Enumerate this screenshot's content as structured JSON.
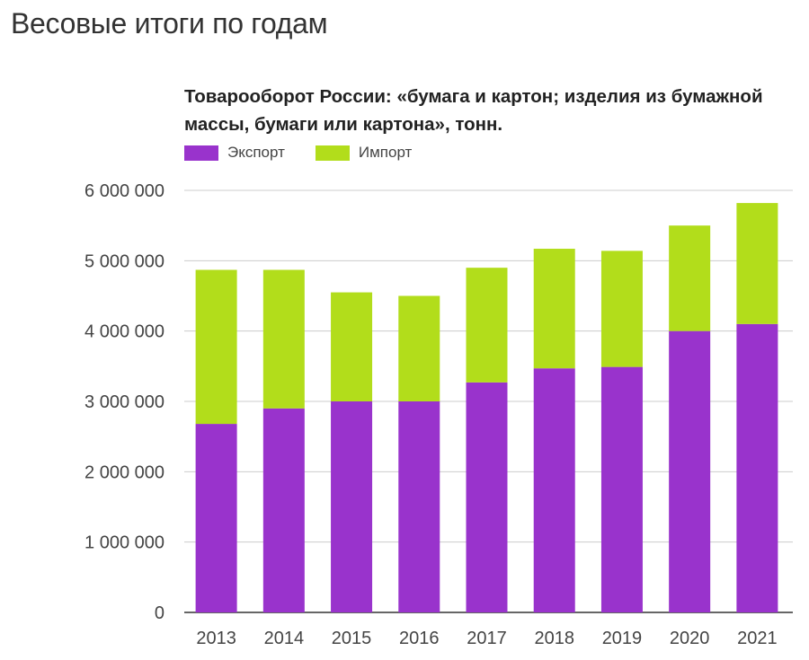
{
  "page": {
    "title": "Весовые итоги по годам"
  },
  "chart_data": {
    "type": "bar",
    "stacked": true,
    "title": "Товарооборот России: «бумага и картон; изделия из бумажной массы, бумаги или картона», тонн.",
    "categories": [
      "2013",
      "2014",
      "2015",
      "2016",
      "2017",
      "2018",
      "2019",
      "2020",
      "2021"
    ],
    "series": [
      {
        "name": "Экспорт",
        "color": "#9933cc",
        "values": [
          2680000,
          2900000,
          3000000,
          3000000,
          3270000,
          3470000,
          3490000,
          4000000,
          4100000
        ]
      },
      {
        "name": "Импорт",
        "color": "#b2dd1b",
        "values": [
          2190000,
          1970000,
          1550000,
          1500000,
          1630000,
          1700000,
          1650000,
          1500000,
          1720000
        ]
      }
    ],
    "ylim": [
      0,
      6000000
    ],
    "yticks": [
      "0",
      "1 000 000",
      "2 000 000",
      "3 000 000",
      "4 000 000",
      "5 000 000",
      "6 000 000"
    ],
    "ytick_values": [
      0,
      1000000,
      2000000,
      3000000,
      4000000,
      5000000,
      6000000
    ],
    "grid": true,
    "legend_position": "top-left",
    "xlabel": "",
    "ylabel": ""
  }
}
